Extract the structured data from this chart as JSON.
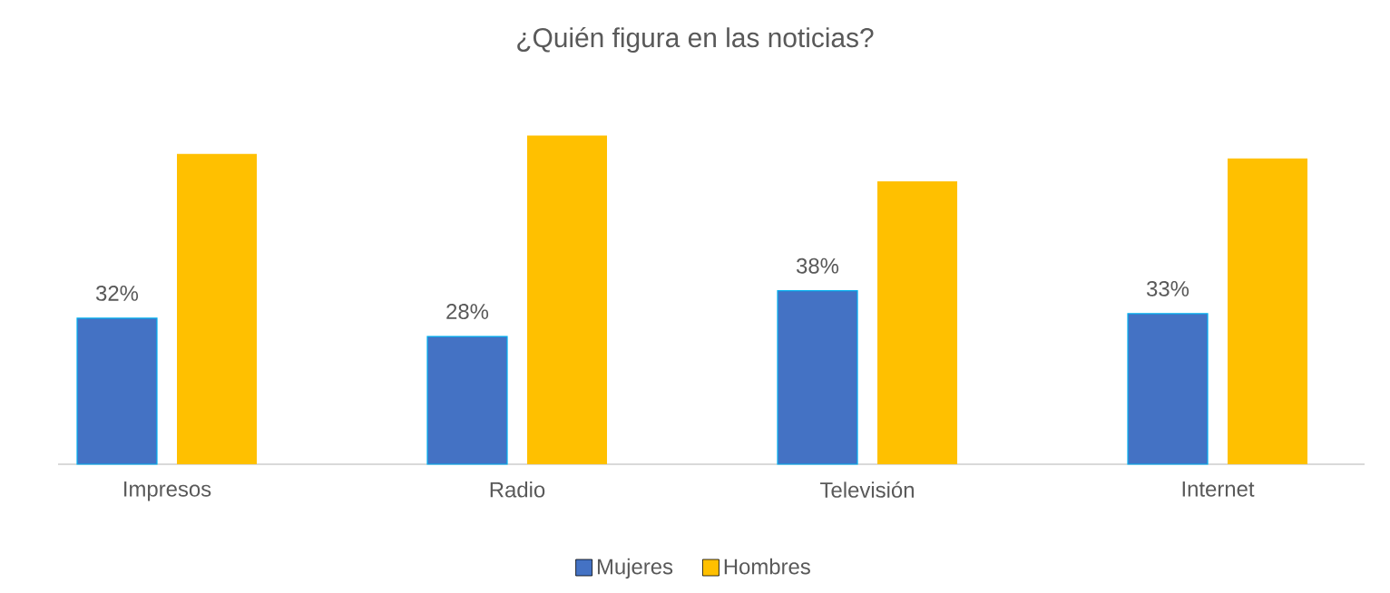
{
  "chart_data": {
    "type": "bar",
    "title": "¿Quién figura en las noticias?",
    "categories": [
      "Impresos",
      "Radio",
      "Televisión",
      "Internet"
    ],
    "series": [
      {
        "name": "Mujeres",
        "color": "#4472c4",
        "values": [
          32,
          28,
          38,
          33
        ],
        "value_labels": [
          "32%",
          "28%",
          "38%",
          "33%"
        ]
      },
      {
        "name": "Hombres",
        "color": "#ffc000",
        "values": [
          68,
          72,
          62,
          67
        ]
      }
    ],
    "grid": false,
    "legend": "bottom",
    "tick_labels": "x"
  }
}
